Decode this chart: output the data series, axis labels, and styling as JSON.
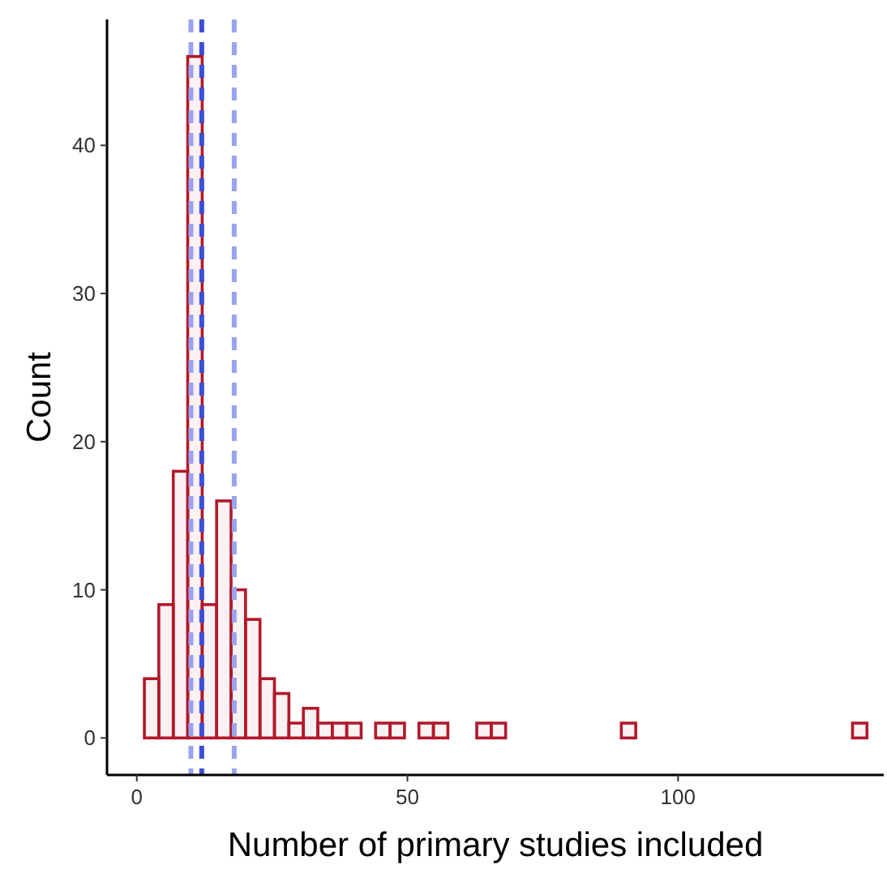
{
  "chart_data": {
    "type": "histogram",
    "xlabel": "Number of primary studies included",
    "ylabel": "Count",
    "bins": [
      1.4,
      4.07,
      6.74,
      9.41,
      12.08,
      14.75,
      17.42,
      20.09,
      22.76,
      25.43,
      28.1,
      30.77,
      33.44,
      36.11,
      38.78,
      41.45,
      44.12,
      46.79,
      49.46,
      52.13,
      54.8,
      57.47,
      60.14,
      62.81,
      65.48,
      68.15,
      70.82,
      73.49,
      76.16,
      78.83,
      81.5,
      84.17,
      86.84,
      89.51,
      92.18,
      94.85,
      97.52,
      100.19,
      102.86,
      105.53,
      108.2,
      110.87,
      113.54,
      116.21,
      118.88,
      121.55,
      124.22,
      126.89,
      129.56,
      132.23,
      134.9
    ],
    "values": [
      4,
      9,
      18,
      46,
      9,
      16,
      10,
      8,
      4,
      3,
      1,
      2,
      1,
      1,
      1,
      0,
      1,
      1,
      0,
      1,
      1,
      0,
      0,
      1,
      1,
      0,
      0,
      0,
      0,
      0,
      0,
      0,
      0,
      1,
      0,
      0,
      0,
      0,
      0,
      0,
      0,
      0,
      0,
      0,
      0,
      0,
      0,
      0,
      0,
      1
    ],
    "color": "#b2182b",
    "xlim": [
      -5.5,
      138
    ],
    "xticks": [
      0,
      50,
      100
    ],
    "ylim": [
      -2.5,
      48.5
    ],
    "yticks": [
      0,
      10,
      20,
      30,
      40
    ],
    "grid": false,
    "ref_lines": [
      {
        "axis": "x",
        "value": 10,
        "color": "#99a3ef",
        "line_style": "dashed"
      },
      {
        "axis": "x",
        "value": 18,
        "color": "#99a3ef",
        "line_style": "dashed"
      },
      {
        "axis": "x",
        "value": 12,
        "color": "#3b4fd9",
        "line_style": "dashed"
      }
    ]
  }
}
